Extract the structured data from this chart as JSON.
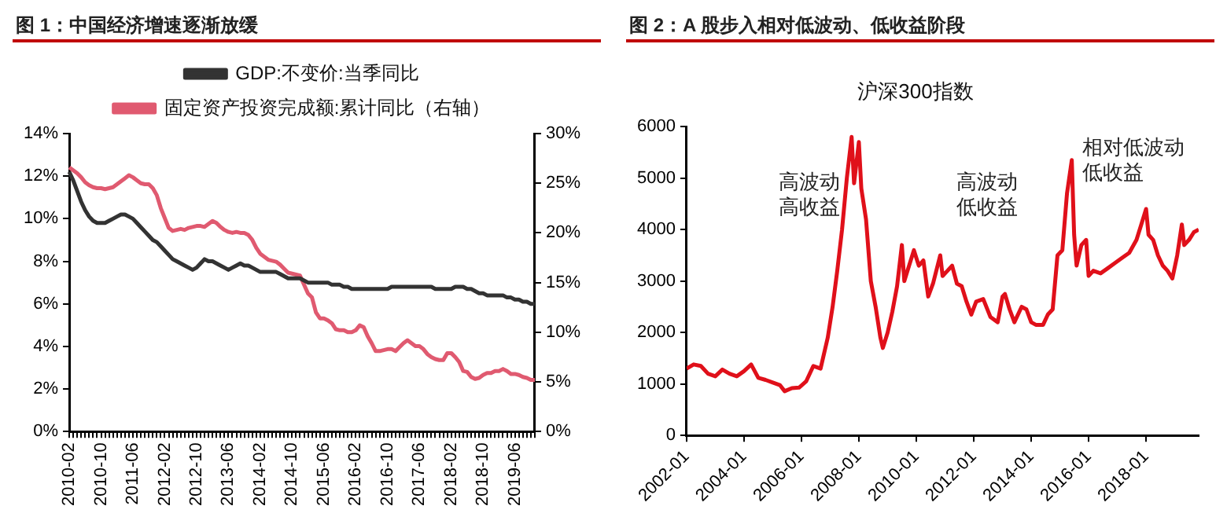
{
  "chart_data": [
    {
      "type": "line",
      "title": "图 1：中国经济增速逐渐放缓",
      "categories": [
        "2010-02",
        null,
        null,
        null,
        null,
        null,
        null,
        null,
        "2010-10",
        null,
        null,
        null,
        null,
        null,
        null,
        null,
        "2011-06",
        null,
        null,
        null,
        null,
        null,
        null,
        null,
        "2012-02",
        null,
        null,
        null,
        null,
        null,
        null,
        null,
        "2012-10",
        null,
        null,
        null,
        null,
        null,
        null,
        null,
        "2013-06",
        null,
        null,
        null,
        null,
        null,
        null,
        null,
        "2014-02",
        null,
        null,
        null,
        null,
        null,
        null,
        null,
        "2014-10",
        null,
        null,
        null,
        null,
        null,
        null,
        null,
        "2015-06",
        null,
        null,
        null,
        null,
        null,
        null,
        null,
        "2016-02",
        null,
        null,
        null,
        null,
        null,
        null,
        null,
        "2016-10",
        null,
        null,
        null,
        null,
        null,
        null,
        null,
        "2017-06",
        null,
        null,
        null,
        null,
        null,
        null,
        null,
        "2018-02",
        null,
        null,
        null,
        null,
        null,
        null,
        null,
        "2018-10",
        null,
        null,
        null,
        null,
        null,
        null,
        null,
        "2019-06",
        null,
        null,
        null,
        null,
        null
      ],
      "series": [
        {
          "name": "GDP:不变价:当季同比",
          "color": "#333333",
          "values": [
            12.2,
            11.8,
            11.3,
            10.8,
            10.4,
            10.1,
            9.9,
            9.8,
            9.8,
            9.8,
            9.9,
            10.0,
            10.1,
            10.2,
            10.2,
            10.1,
            10.0,
            9.8,
            9.6,
            9.4,
            9.2,
            9.0,
            8.9,
            8.7,
            8.5,
            8.3,
            8.1,
            8.0,
            7.9,
            7.8,
            7.7,
            7.6,
            7.7,
            7.9,
            8.1,
            8.0,
            8.0,
            7.9,
            7.8,
            7.7,
            7.6,
            7.7,
            7.8,
            7.9,
            7.8,
            7.8,
            7.7,
            7.6,
            7.5,
            7.5,
            7.5,
            7.5,
            7.5,
            7.4,
            7.3,
            7.2,
            7.2,
            7.2,
            7.2,
            7.1,
            7.0,
            7.0,
            7.0,
            7.0,
            7.0,
            7.0,
            6.9,
            6.9,
            6.9,
            6.8,
            6.8,
            6.7,
            6.7,
            6.7,
            6.7,
            6.7,
            6.7,
            6.7,
            6.7,
            6.7,
            6.7,
            6.8,
            6.8,
            6.8,
            6.8,
            6.8,
            6.8,
            6.8,
            6.8,
            6.8,
            6.8,
            6.8,
            6.7,
            6.7,
            6.7,
            6.7,
            6.7,
            6.8,
            6.8,
            6.8,
            6.7,
            6.7,
            6.6,
            6.5,
            6.5,
            6.4,
            6.4,
            6.4,
            6.4,
            6.4,
            6.3,
            6.3,
            6.2,
            6.2,
            6.1,
            6.1,
            6.0,
            6.0
          ]
        },
        {
          "name": "固定资产投资完成额:累计同比（右轴）",
          "color": "#e05a70",
          "axis": "y2",
          "values": [
            26.6,
            26.3,
            26.0,
            25.6,
            25.1,
            24.8,
            24.6,
            24.5,
            24.5,
            24.4,
            24.5,
            24.6,
            24.9,
            25.2,
            25.5,
            25.8,
            25.6,
            25.3,
            25.0,
            24.9,
            24.9,
            24.5,
            23.8,
            22.5,
            21.5,
            20.5,
            20.2,
            20.3,
            20.4,
            20.3,
            20.5,
            20.6,
            20.7,
            20.7,
            20.6,
            20.9,
            21.2,
            21.0,
            20.6,
            20.3,
            20.1,
            20.0,
            20.1,
            20.0,
            20.0,
            19.8,
            19.3,
            18.5,
            17.9,
            17.6,
            17.3,
            17.2,
            17.1,
            16.8,
            16.4,
            16.0,
            15.9,
            15.8,
            15.7,
            14.8,
            13.9,
            13.5,
            12.0,
            11.4,
            11.4,
            11.2,
            10.9,
            10.3,
            10.2,
            10.2,
            10.0,
            10.0,
            10.2,
            10.7,
            10.5,
            9.6,
            8.9,
            8.1,
            8.1,
            8.2,
            8.3,
            8.3,
            8.1,
            8.5,
            8.9,
            9.2,
            8.9,
            8.6,
            8.6,
            8.3,
            7.8,
            7.5,
            7.3,
            7.2,
            7.2,
            7.9,
            7.9,
            7.5,
            7.0,
            6.1,
            6.0,
            5.5,
            5.3,
            5.4,
            5.7,
            5.9,
            5.9,
            6.1,
            6.1,
            6.3,
            6.1,
            5.8,
            5.8,
            5.7,
            5.5,
            5.4,
            5.2,
            5.2
          ]
        }
      ],
      "ylim": [
        0,
        14
      ],
      "yticks": [
        {
          "value": 0,
          "label": "0%"
        },
        {
          "value": 2,
          "label": "2%"
        },
        {
          "value": 4,
          "label": "4%"
        },
        {
          "value": 6,
          "label": "6%"
        },
        {
          "value": 8,
          "label": "8%"
        },
        {
          "value": 10,
          "label": "10%"
        },
        {
          "value": 12,
          "label": "12%"
        },
        {
          "value": 14,
          "label": "14%"
        }
      ],
      "y2lim": [
        0,
        30
      ],
      "y2ticks": [
        {
          "value": 0,
          "label": "0%"
        },
        {
          "value": 5,
          "label": "5%"
        },
        {
          "value": 10,
          "label": "10%"
        },
        {
          "value": 15,
          "label": "15%"
        },
        {
          "value": 20,
          "label": "20%"
        },
        {
          "value": 25,
          "label": "25%"
        },
        {
          "value": 30,
          "label": "30%"
        }
      ],
      "legend": "top",
      "grid": false,
      "marker": "none",
      "line_style": "solid"
    },
    {
      "type": "line",
      "title": "图 2：A 股步入相对低波动、低收益阶段",
      "subtitle": "沪深300指数",
      "x": [
        "2002-01",
        "2002-04",
        "2002-07",
        "2002-10",
        "2003-01",
        "2003-04",
        "2003-07",
        "2003-10",
        "2004-01",
        "2004-04",
        "2004-07",
        "2004-10",
        "2005-01",
        "2005-04",
        "2005-06",
        "2005-09",
        "2005-12",
        "2006-03",
        "2006-06",
        "2006-09",
        "2006-12",
        "2007-02",
        "2007-04",
        "2007-06",
        "2007-08",
        "2007-10",
        "2007-11",
        "2008-01",
        "2008-02",
        "2008-04",
        "2008-06",
        "2008-08",
        "2008-10",
        "2008-11",
        "2009-01",
        "2009-03",
        "2009-05",
        "2009-07",
        "2009-08",
        "2009-10",
        "2009-12",
        "2010-02",
        "2010-04",
        "2010-06",
        "2010-08",
        "2010-11",
        "2010-12",
        "2011-02",
        "2011-04",
        "2011-06",
        "2011-08",
        "2011-10",
        "2011-12",
        "2012-02",
        "2012-05",
        "2012-08",
        "2012-11",
        "2013-01",
        "2013-02",
        "2013-04",
        "2013-06",
        "2013-09",
        "2013-11",
        "2014-01",
        "2014-03",
        "2014-06",
        "2014-08",
        "2014-10",
        "2014-12",
        "2015-02",
        "2015-04",
        "2015-06",
        "2015-07",
        "2015-08",
        "2015-10",
        "2015-12",
        "2016-01",
        "2016-03",
        "2016-06",
        "2016-09",
        "2016-12",
        "2017-03",
        "2017-06",
        "2017-09",
        "2017-11",
        "2018-01",
        "2018-02",
        "2018-04",
        "2018-06",
        "2018-08",
        "2018-10",
        "2018-12",
        "2019-02",
        "2019-04",
        "2019-05",
        "2019-07",
        "2019-09",
        "2019-11"
      ],
      "series": [
        {
          "color": "#e0101a",
          "values": [
            1300,
            1380,
            1350,
            1200,
            1150,
            1280,
            1200,
            1150,
            1250,
            1380,
            1120,
            1080,
            1030,
            980,
            860,
            920,
            930,
            1050,
            1350,
            1300,
            1900,
            2500,
            3200,
            4000,
            5000,
            5800,
            4900,
            5700,
            4800,
            4200,
            3000,
            2500,
            1900,
            1700,
            2000,
            2400,
            2900,
            3700,
            3000,
            3300,
            3600,
            3300,
            3400,
            2700,
            2950,
            3500,
            3100,
            3200,
            3300,
            2950,
            2900,
            2600,
            2350,
            2600,
            2650,
            2300,
            2200,
            2700,
            2750,
            2450,
            2200,
            2500,
            2450,
            2200,
            2150,
            2150,
            2350,
            2450,
            3500,
            3600,
            4700,
            5350,
            3900,
            3300,
            3700,
            3800,
            3100,
            3200,
            3150,
            3250,
            3350,
            3450,
            3550,
            3800,
            4100,
            4400,
            3900,
            3800,
            3500,
            3300,
            3200,
            3050,
            3500,
            4100,
            3700,
            3800,
            3950,
            4000
          ]
        }
      ],
      "xlim": [
        "2002-01",
        "2019-11"
      ],
      "xticks": [
        "2002-01",
        "2004-01",
        "2006-01",
        "2008-01",
        "2010-01",
        "2012-01",
        "2014-01",
        "2016-01",
        "2018-01"
      ],
      "ylim": [
        0,
        6000
      ],
      "yticks": [
        0,
        1000,
        2000,
        3000,
        4000,
        5000,
        6000
      ],
      "annotations": [
        "高波动高收益",
        "高波动低收益",
        "相对低波动低收益"
      ],
      "grid": false,
      "legend": false,
      "marker": "none",
      "line_style": "solid"
    }
  ]
}
